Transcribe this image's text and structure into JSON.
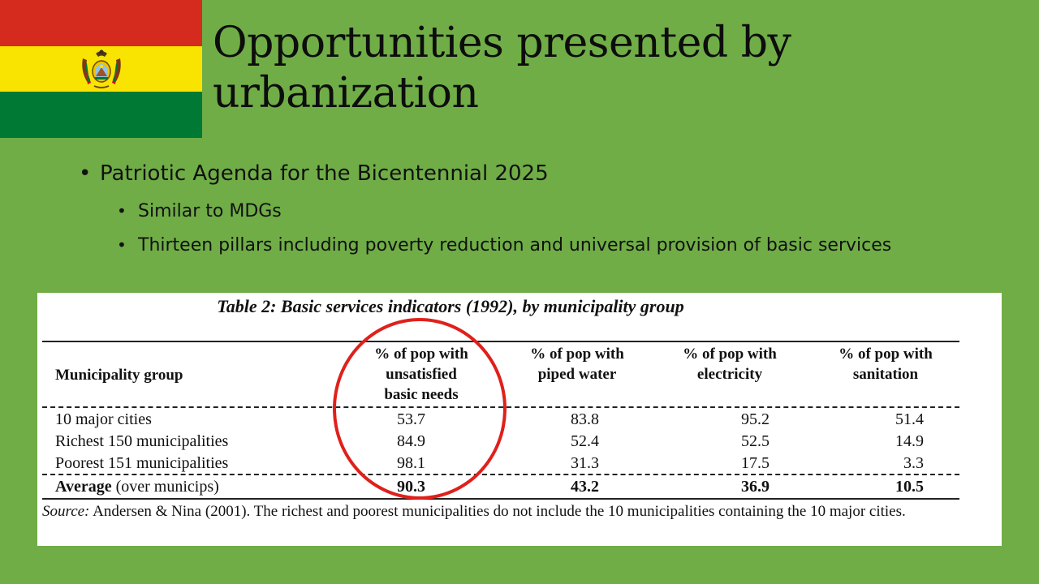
{
  "slide": {
    "title": "Opportunities presented by urbanization",
    "bullet_level1": "Patriotic Agenda for the Bicentennial 2025",
    "bullets_level2": [
      "Similar to MDGs",
      "Thirteen pillars including poverty reduction and universal provision of basic services"
    ],
    "bullet_symbol": "•",
    "colors": {
      "background": "#70AD47",
      "flag_red": "#D52B1E",
      "flag_yellow": "#F9E300",
      "flag_green": "#007934",
      "highlight_circle": "#E0201B"
    },
    "icons": [
      "bolivia-flag-icon",
      "coat-of-arms-icon"
    ]
  },
  "table": {
    "caption": "Table 2: Basic services indicators (1992), by municipality group",
    "headers": [
      "Municipality group",
      "% of pop with unsatisfied basic needs",
      "% of pop with piped water",
      "% of pop with electricity",
      "% of pop with sanitation"
    ],
    "header_lines": [
      [
        "Municipality group"
      ],
      [
        "% of pop with",
        "unsatisfied",
        "basic needs"
      ],
      [
        "% of pop with",
        "piped water"
      ],
      [
        "% of pop with",
        "electricity"
      ],
      [
        "% of pop with",
        "sanitation"
      ]
    ],
    "rows": [
      {
        "label": "10 major cities",
        "values": [
          "53.7",
          "83.8",
          "95.2",
          "51.4"
        ]
      },
      {
        "label": "Richest 150 municipalities",
        "values": [
          "84.9",
          "52.4",
          "52.5",
          "14.9"
        ]
      },
      {
        "label": "Poorest 151 municipalities",
        "values": [
          "98.1",
          "31.3",
          "17.5",
          "3.3"
        ]
      }
    ],
    "average": {
      "label_bold": "Average",
      "label_rest": " (over municips)",
      "values": [
        "90.3",
        "43.2",
        "36.9",
        "10.5"
      ]
    },
    "source_label": "Source:",
    "source_text": " Andersen & Nina (2001).  The richest and poorest municipalities do not include the 10 municipalities containing the 10 major cities.",
    "highlighted_column": "% of pop with unsatisfied basic needs"
  }
}
